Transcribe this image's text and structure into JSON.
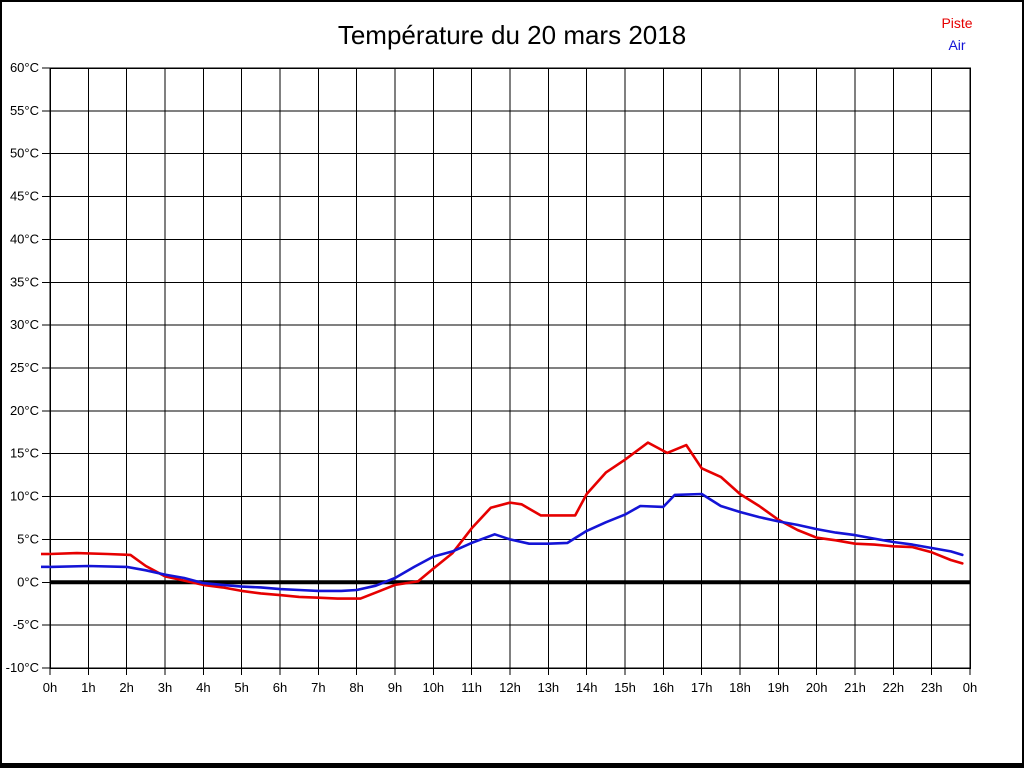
{
  "title": "Température du 20 mars 2018",
  "legend": [
    {
      "label": "Piste",
      "color": "#e60000"
    },
    {
      "label": "Air",
      "color": "#1414d6"
    }
  ],
  "colors": {
    "grid": "#000000",
    "zero_line": "#000000",
    "background": "#ffffff",
    "frame": "#000000"
  },
  "chart_data": {
    "type": "line",
    "title": "Température du 20 mars 2018",
    "xlabel": "",
    "ylabel": "",
    "xlim": [
      0,
      24
    ],
    "ylim": [
      -10,
      60
    ],
    "y_tick_step": 5,
    "grid": true,
    "zero_line_at": 0,
    "legend_position": "top-right",
    "x_tick_labels": [
      "0h",
      "1h",
      "2h",
      "3h",
      "4h",
      "5h",
      "6h",
      "7h",
      "8h",
      "9h",
      "10h",
      "11h",
      "12h",
      "13h",
      "14h",
      "15h",
      "16h",
      "17h",
      "18h",
      "19h",
      "20h",
      "21h",
      "22h",
      "23h",
      "0h"
    ],
    "y_tick_labels": [
      "60°C",
      "55°C",
      "50°C",
      "45°C",
      "40°C",
      "35°C",
      "30°C",
      "25°C",
      "20°C",
      "15°C",
      "10°C",
      "5°C",
      "0°C",
      "-5°C",
      "-10°C"
    ],
    "series": [
      {
        "name": "Piste",
        "color": "#e60000",
        "x": [
          0,
          0.7,
          1.5,
          2.1,
          2.5,
          3,
          3.5,
          4,
          4.5,
          5,
          5.5,
          6,
          6.5,
          7,
          7.5,
          8.1,
          8.5,
          9,
          9.6,
          10,
          10.5,
          11,
          11.5,
          12,
          12.3,
          12.8,
          13,
          13.7,
          14,
          14.5,
          15,
          15.6,
          16.1,
          16.6,
          17,
          17.5,
          18,
          18.5,
          19,
          19.5,
          20,
          20.5,
          21,
          21.5,
          22,
          22.5,
          23,
          23.5,
          23.8
        ],
        "y": [
          3.3,
          3.4,
          3.3,
          3.2,
          1.9,
          0.7,
          0.2,
          -0.3,
          -0.6,
          -1.0,
          -1.3,
          -1.5,
          -1.7,
          -1.8,
          -1.9,
          -1.9,
          -1.2,
          -0.3,
          0.1,
          1.6,
          3.4,
          6.3,
          8.7,
          9.3,
          9.1,
          7.8,
          7.8,
          7.8,
          10.3,
          12.8,
          14.3,
          16.3,
          15.1,
          16.0,
          13.3,
          12.3,
          10.3,
          8.9,
          7.3,
          6.1,
          5.2,
          4.9,
          4.5,
          4.4,
          4.2,
          4.1,
          3.5,
          2.6,
          2.2
        ]
      },
      {
        "name": "Air",
        "color": "#1414d6",
        "x": [
          0,
          1,
          2,
          2.5,
          3,
          3.5,
          4,
          4.5,
          5,
          5.5,
          6,
          6.5,
          7,
          7.6,
          8,
          8.5,
          9,
          9.5,
          10,
          10.5,
          11,
          11.6,
          12,
          12.5,
          13,
          13.5,
          14,
          14.5,
          15,
          15.4,
          16,
          16.3,
          17,
          17.5,
          18,
          18.5,
          19,
          19.5,
          20,
          20.5,
          21,
          21.5,
          22,
          22.5,
          23,
          23.5,
          23.8
        ],
        "y": [
          1.8,
          1.9,
          1.8,
          1.4,
          0.9,
          0.5,
          -0.1,
          -0.3,
          -0.5,
          -0.6,
          -0.8,
          -0.9,
          -1.0,
          -1.0,
          -0.9,
          -0.4,
          0.5,
          1.8,
          3.0,
          3.6,
          4.6,
          5.6,
          5.0,
          4.5,
          4.5,
          4.6,
          6.0,
          7.0,
          7.9,
          8.9,
          8.8,
          10.2,
          10.3,
          8.9,
          8.2,
          7.6,
          7.1,
          6.7,
          6.2,
          5.8,
          5.5,
          5.1,
          4.7,
          4.4,
          4.0,
          3.6,
          3.2
        ]
      }
    ]
  }
}
